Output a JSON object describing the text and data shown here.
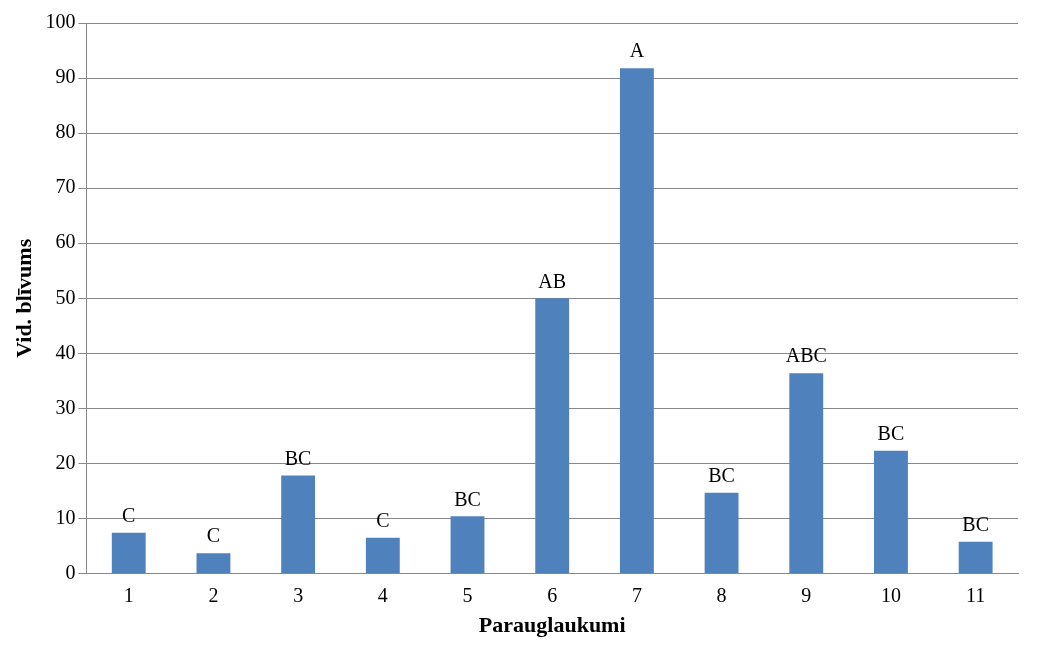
{
  "chart_data": {
    "type": "bar",
    "xlabel": "Parauglaukumi",
    "ylabel": "Vid. blīvums",
    "categories": [
      "1",
      "2",
      "3",
      "4",
      "5",
      "6",
      "7",
      "8",
      "9",
      "10",
      "11"
    ],
    "values": [
      7.4,
      3.7,
      17.8,
      6.5,
      10.4,
      50,
      91.8,
      14.7,
      36.4,
      22.3,
      5.8
    ],
    "color": "#4f81bd",
    "ylim": [
      0,
      100
    ],
    "yticks": [
      0,
      10,
      20,
      30,
      40,
      50,
      60,
      70,
      80,
      90,
      100
    ],
    "grid": "y",
    "legend": false,
    "annotations": [
      {
        "text": "C",
        "x": "1",
        "y": 7.4
      },
      {
        "text": "C",
        "x": "2",
        "y": 3.7
      },
      {
        "text": "BC",
        "x": "3",
        "y": 17.8
      },
      {
        "text": "C",
        "x": "4",
        "y": 6.5
      },
      {
        "text": "BC",
        "x": "5",
        "y": 10.4
      },
      {
        "text": "AB",
        "x": "6",
        "y": 50
      },
      {
        "text": "A",
        "x": "7",
        "y": 91.8
      },
      {
        "text": "BC",
        "x": "8",
        "y": 14.7
      },
      {
        "text": "ABC",
        "x": "9",
        "y": 36.4
      },
      {
        "text": "BC",
        "x": "10",
        "y": 22.3
      },
      {
        "text": "BC",
        "x": "11",
        "y": 5.8
      }
    ]
  }
}
